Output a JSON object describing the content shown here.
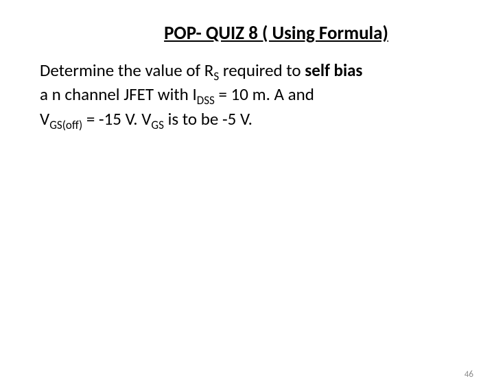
{
  "title": {
    "pop_quiz_text": "POP- QUIZ 8 ( Using Formula)",
    "fontsize": 27,
    "color_black": "#000000",
    "color_red": "#c00000"
  },
  "content": {
    "line1_part1": "Determine the value of R",
    "line1_sub1": "S",
    "line1_part2": " required to ",
    "line1_bold": "self bias",
    "line2_part1": " a  n channel JFET with I",
    "line2_sub1": "DSS",
    "line2_part2": " = 10 m. A and",
    "line3_part1": " V",
    "line3_sub1": "GS(off)",
    "line3_part2": " = -15 V. V",
    "line3_sub2": "GS",
    "line3_part3": " is to be -5 V.",
    "main_fontsize": 25,
    "sub_fontsize": 17
  },
  "page_number": {
    "value": "46",
    "fontsize": 13,
    "color": "#8a8a8a"
  },
  "background_color": "#ffffff"
}
